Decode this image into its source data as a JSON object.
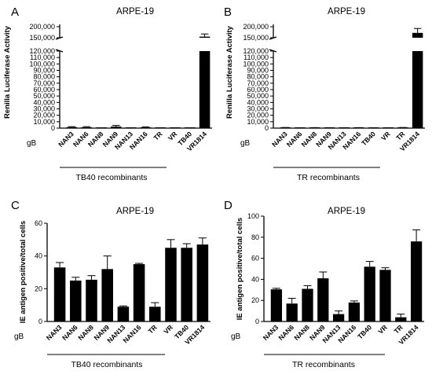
{
  "chart_data": [
    {
      "panel": "A",
      "type": "bar",
      "title": "ARPE-19",
      "ylabel": "Renilla Luciferase Activity",
      "row_label": "gB",
      "group_label": "TB40 recombinants",
      "categories": [
        "NAN3",
        "NAN6",
        "NAN8",
        "NAN9",
        "NAN13",
        "NAN16",
        "TR",
        "VR",
        "TB40",
        "VR1814"
      ],
      "values": [
        1500,
        1400,
        300,
        2500,
        300,
        1300,
        200,
        200,
        300,
        155000
      ],
      "errors": [
        800,
        900,
        200,
        1800,
        200,
        700,
        100,
        100,
        200,
        12000
      ],
      "axis_break": true,
      "ylim_lower": [
        0,
        120000
      ],
      "ylim_upper": [
        150000,
        200000
      ],
      "yticks_lower": [
        "0",
        "10,000",
        "20,000",
        "30,000",
        "40,000",
        "50,000",
        "60,000",
        "70,000",
        "80,000",
        "90,000",
        "100,000",
        "110,000",
        "120,000"
      ],
      "yticks_upper": [
        "150,000",
        "200,000"
      ]
    },
    {
      "panel": "B",
      "type": "bar",
      "title": "ARPE-19",
      "ylabel": "Renilla Luciferase Activity",
      "row_label": "gB",
      "group_label": "TR recombinants",
      "categories": [
        "NAN3",
        "NAN6",
        "NAN8",
        "NAN9",
        "NAN13",
        "NAN16",
        "TB40",
        "VR",
        "TR",
        "VR1814"
      ],
      "values": [
        600,
        300,
        500,
        400,
        300,
        500,
        200,
        200,
        600,
        172000
      ],
      "errors": [
        400,
        200,
        300,
        300,
        200,
        300,
        100,
        100,
        400,
        20000
      ],
      "axis_break": true,
      "ylim_lower": [
        0,
        120000
      ],
      "ylim_upper": [
        150000,
        200000
      ],
      "yticks_lower": [
        "0",
        "10,000",
        "20,000",
        "30,000",
        "40,000",
        "50,000",
        "60,000",
        "70,000",
        "80,000",
        "90,000",
        "100,000",
        "110,000",
        "120,000"
      ],
      "yticks_upper": [
        "150,000",
        "200,000"
      ]
    },
    {
      "panel": "C",
      "type": "bar",
      "title": "ARPE-19",
      "ylabel": "IE antigen positive/total cells",
      "row_label": "gB",
      "group_label": "TB40 recombinants",
      "categories": [
        "NAN3",
        "NAN6",
        "NAN8",
        "NAN9",
        "NAN13",
        "NAN16",
        "TR",
        "VR",
        "TB40",
        "VR1814"
      ],
      "values": [
        33,
        25,
        25.5,
        32,
        9,
        35,
        9,
        45,
        45,
        47
      ],
      "errors": [
        3,
        2,
        2.5,
        8,
        0.5,
        0.5,
        2.5,
        5,
        2.5,
        4
      ],
      "ylim": [
        0,
        60
      ],
      "yticks": [
        "0",
        "20",
        "40",
        "60"
      ]
    },
    {
      "panel": "D",
      "type": "bar",
      "title": "ARPE-19",
      "ylabel": "IE antigen positive/total cells",
      "row_label": "gB",
      "group_label": "TR recombinants",
      "categories": [
        "NAN3",
        "NAN6",
        "NAN8",
        "NAN9",
        "NAN13",
        "NAN16",
        "TB40",
        "VR",
        "TR",
        "VR1814"
      ],
      "values": [
        30.5,
        17,
        31,
        41,
        7,
        18,
        52,
        49,
        4,
        76
      ],
      "errors": [
        1,
        5,
        3,
        6,
        3,
        1.5,
        5,
        2,
        3,
        11
      ],
      "ylim": [
        0,
        100
      ],
      "yticks": [
        "0",
        "20",
        "40",
        "60",
        "80",
        "100"
      ]
    }
  ]
}
